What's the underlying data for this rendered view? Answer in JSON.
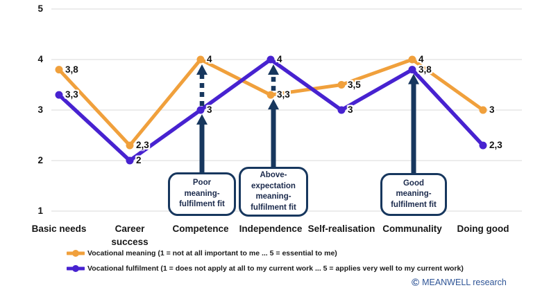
{
  "chart_data": {
    "type": "line",
    "categories": [
      "Basic needs",
      "Career success",
      "Competence",
      "Independence",
      "Self-realisation",
      "Communality",
      "Doing good"
    ],
    "series": [
      {
        "name": "Vocational meaning (1 = not at all important to me ... 5 = essential to me)",
        "values": [
          3.8,
          2.3,
          4,
          3.3,
          3.5,
          4,
          3
        ],
        "point_labels": [
          "3,8",
          "2,3",
          "4",
          "3,3",
          "3,5",
          "4",
          "3"
        ],
        "color": "#F0A03C"
      },
      {
        "name": "Vocational fulfilment (1 = does not apply at all to my current work ... 5 = applies very well to my current work)",
        "values": [
          3.3,
          2,
          3,
          4,
          3,
          3.8,
          2.3
        ],
        "point_labels": [
          "3,3",
          "2",
          "3",
          "4",
          "3",
          "3,8",
          "2,3"
        ],
        "color": "#4722D0"
      }
    ],
    "ylim": [
      1,
      5
    ],
    "yticks": [
      5,
      4,
      3,
      2,
      1
    ],
    "grid": true,
    "gridline_color": "#D9D9D9",
    "legend_position": "bottom-left",
    "layout_hints": {
      "wrap_category_indices": [
        1
      ]
    }
  },
  "annotations": [
    {
      "lines": [
        "Poor",
        "meaning-",
        "fulfilment fit"
      ],
      "category_index": 2,
      "arrow_to_series": 1,
      "dashed_gap": {
        "from_series": 1,
        "to_series": 0
      }
    },
    {
      "lines": [
        "Above-",
        "expectation",
        "meaning-",
        "fulfilment fit"
      ],
      "category_index": 3,
      "arrow_to_series": 0,
      "dashed_gap": {
        "from_series": 0,
        "to_series": 1
      }
    },
    {
      "lines": [
        "Good",
        "meaning-",
        "fulfilment fit"
      ],
      "category_index": 5,
      "arrow_to_series": 1,
      "dashed_gap": null
    }
  ],
  "annotation_color": "#17375E",
  "footer": {
    "copyright_symbol": "©",
    "copyright_text": "MEANWELL research"
  }
}
